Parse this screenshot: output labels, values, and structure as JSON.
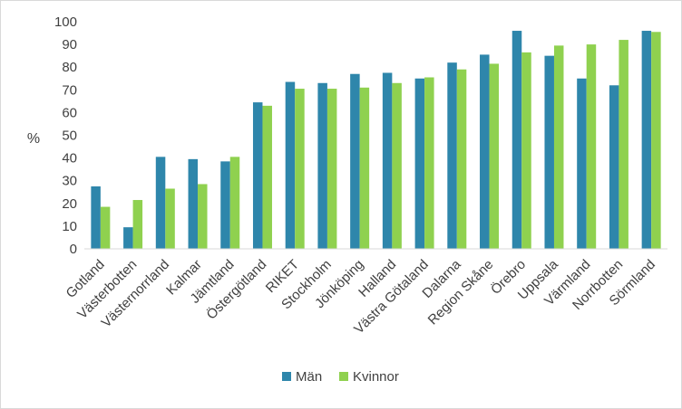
{
  "chart_data": {
    "type": "bar",
    "title": "",
    "xlabel": "",
    "ylabel": "%",
    "ylim": [
      0,
      100
    ],
    "yticks": [
      0,
      10,
      20,
      30,
      40,
      50,
      60,
      70,
      80,
      90,
      100
    ],
    "grid": false,
    "legend_position": "bottom",
    "categories": [
      "Gotland",
      "Västerbotten",
      "Västernorrland",
      "Kalmar",
      "Jämtland",
      "Östergötland",
      "RIKET",
      "Stockholm",
      "Jönköping",
      "Halland",
      "Västra Götaland",
      "Dalarna",
      "Region Skåne",
      "Örebro",
      "Uppsala",
      "Värmland",
      "Norrbotten",
      "Sörmland"
    ],
    "series": [
      {
        "name": "Män",
        "color": "#2e86ab",
        "values": [
          27.5,
          9.5,
          40.5,
          39.5,
          38.5,
          64.5,
          73.5,
          73,
          77,
          77.5,
          75,
          82,
          85.5,
          96,
          85,
          75,
          72,
          96
        ]
      },
      {
        "name": "Kvinnor",
        "color": "#8fd14f",
        "values": [
          18.5,
          21.5,
          26.5,
          28.5,
          40.5,
          63,
          70.5,
          70.5,
          71,
          73,
          75.5,
          79,
          81.5,
          86.5,
          89.5,
          90,
          92,
          95.5
        ]
      }
    ]
  }
}
